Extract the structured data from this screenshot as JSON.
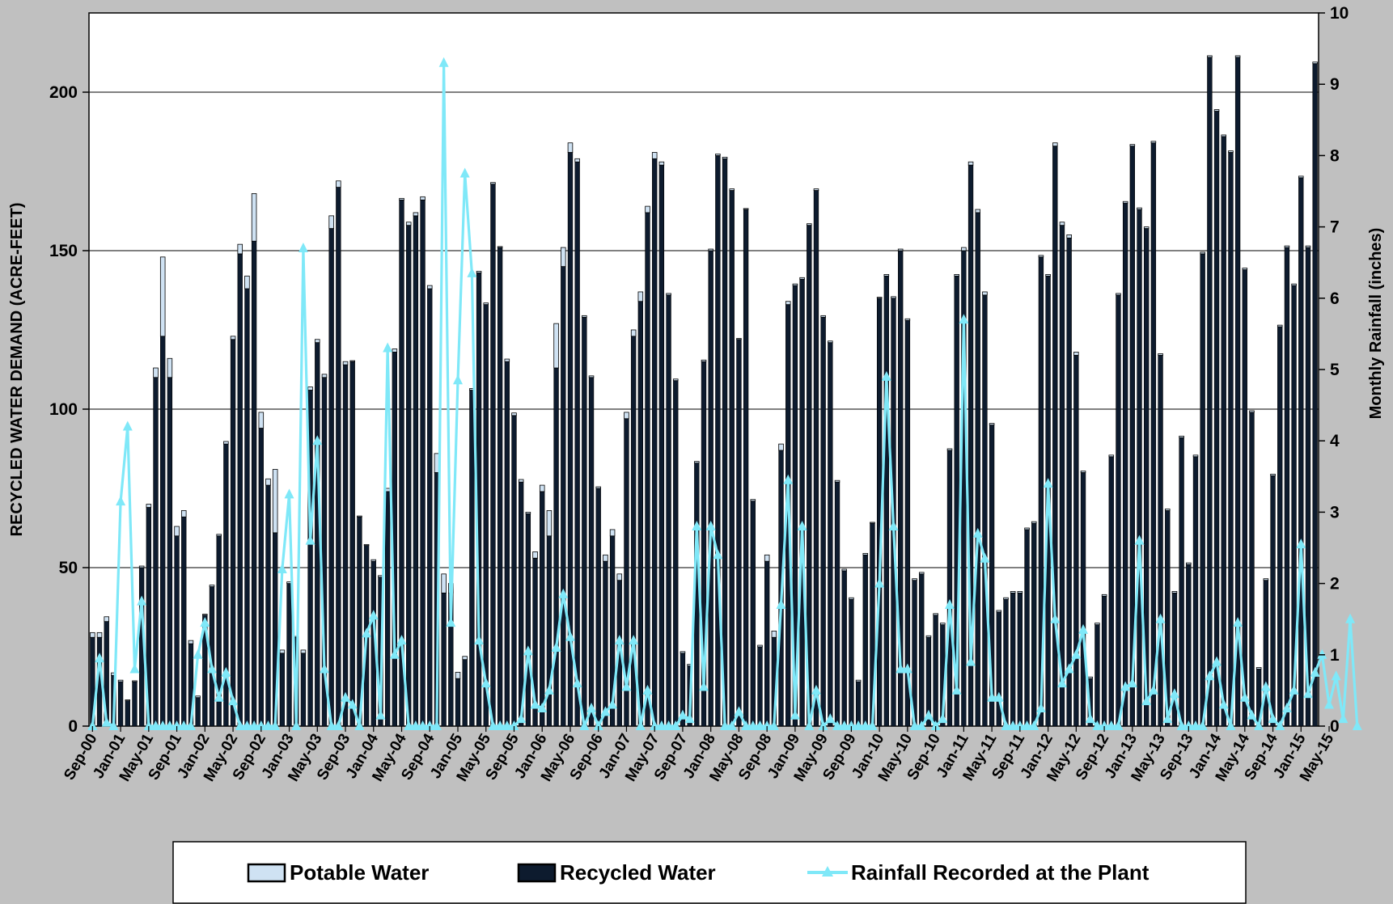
{
  "chart_data": {
    "type": "bar",
    "subtype": "bar-with-line-secondary-axis",
    "ylabel": "RECYCLED WATER DEMAND (ACRE-FEET)",
    "y2label": "Monthly Rainfall (inches)",
    "ylim": [
      0,
      225
    ],
    "y2lim": [
      0,
      10
    ],
    "yticks": [
      "0",
      "50",
      "100",
      "150",
      "200"
    ],
    "y2ticks": [
      "0",
      "1",
      "2",
      "3",
      "4",
      "5",
      "6",
      "7",
      "8",
      "9",
      "10"
    ],
    "xtick_labels": [
      "Sep-00",
      "Jan-01",
      "May-01",
      "Sep-01",
      "Jan-02",
      "May-02",
      "Sep-02",
      "Jan-03",
      "May-03",
      "Sep-03",
      "Jan-04",
      "May-04",
      "Sep-04",
      "Jan-05",
      "May-05",
      "Sep-05",
      "Jan-06",
      "May-06",
      "Sep-06",
      "Jan-07",
      "May-07",
      "Sep-07",
      "Jan-08",
      "May-08",
      "Sep-08",
      "Jan-09",
      "May-09",
      "Sep-09",
      "Jan-10",
      "May-10",
      "Sep-10",
      "Jan-11",
      "May-11",
      "Sep-11",
      "Jan-12",
      "May-12",
      "Sep-12",
      "Jan-13",
      "May-13",
      "Sep-13",
      "Jan-14",
      "May-14",
      "Sep-14",
      "Jan-15",
      "May-15"
    ],
    "grid": true,
    "legend_position": "bottom",
    "colors": {
      "background": "#c0c0c0",
      "plot_area": "#ffffff",
      "potable": "#cfe2f3",
      "recycled": "#0d1b2e",
      "rainfall": "#7fe8f8",
      "gridline": "#000000"
    },
    "series": [
      {
        "name": "Potable Water",
        "axis": "left",
        "values": [
          1.5,
          1.5,
          1.5,
          0.8,
          0.5,
          0.3,
          0.3,
          0.5,
          1,
          3,
          25,
          6,
          3,
          2,
          1,
          0.5,
          0.3,
          0.5,
          0.5,
          0.8,
          1,
          3,
          4,
          15,
          5,
          2,
          20,
          1,
          0.5,
          0.3,
          1,
          1,
          1,
          1,
          4,
          2,
          1,
          0.3,
          0.3,
          0.3,
          0.5,
          0.5,
          1,
          1,
          0.5,
          1,
          1,
          1,
          1,
          6,
          6,
          3,
          2,
          1,
          0.5,
          0.5,
          0.5,
          0.5,
          0.3,
          0.8,
          0.8,
          0.8,
          0.5,
          2,
          2,
          8,
          14,
          6,
          3,
          1,
          0.5,
          0.5,
          0.5,
          2,
          2,
          2,
          2,
          2,
          3,
          2,
          2,
          1,
          0.5,
          0.5,
          0.5,
          0.5,
          0.5,
          0.5,
          0.5,
          0.5,
          0.5,
          0.5,
          0.3,
          0.3,
          0.5,
          0.5,
          2,
          2,
          2,
          1,
          0.5,
          0.5,
          0.5,
          0.5,
          0.5,
          0.5,
          0.5,
          0.5,
          0.5,
          0.5,
          0.5,
          0.3,
          0.3,
          0.5,
          0.5,
          0.5,
          0.5,
          0.5,
          0.5,
          0.5,
          0.5,
          0.5,
          0.5,
          0.5,
          1,
          1,
          1,
          1,
          0.5,
          0.5,
          0.5,
          0.5,
          0.5,
          0.5,
          0.5,
          0.5,
          0.5,
          1,
          1,
          1,
          1,
          0.5,
          0.5,
          0.5,
          0.5,
          0.5,
          0.5,
          0.5,
          0.5,
          0.5,
          0.5,
          0.5,
          0.5,
          0.5,
          0.5,
          0.5,
          0.5,
          0.5,
          0.5,
          0.5,
          0.5,
          0.5,
          0.5,
          0.5,
          0.5,
          0.5,
          0.5,
          0.5,
          0.5,
          0.5,
          0.5,
          0.5,
          0.5,
          0.5,
          0.5,
          0.5,
          0.5,
          0.5,
          0.5
        ]
      },
      {
        "name": "Recycled Water",
        "axis": "left",
        "values": [
          28,
          28,
          33,
          16,
          14,
          8,
          14,
          50,
          69,
          110,
          123,
          110,
          60,
          66,
          26,
          9,
          35,
          44,
          60,
          89,
          122,
          149,
          138,
          153,
          94,
          76,
          61,
          23,
          45,
          28,
          23,
          106,
          121,
          110,
          157,
          170,
          114,
          115,
          66,
          57,
          52,
          47,
          74,
          118,
          166,
          158,
          161,
          166,
          138,
          80,
          42,
          42,
          15,
          21,
          106,
          143,
          133,
          171,
          151,
          115,
          98,
          77,
          67,
          53,
          74,
          60,
          113,
          145,
          181,
          178,
          129,
          110,
          75,
          52,
          60,
          46,
          97,
          123,
          134,
          162,
          179,
          177,
          136,
          109,
          23,
          19,
          83,
          115,
          150,
          180,
          179,
          169,
          122,
          163,
          71,
          25,
          52,
          28,
          87,
          133,
          139,
          141,
          158,
          169,
          129,
          121,
          77,
          49,
          40,
          14,
          54,
          64,
          135,
          142,
          135,
          150,
          128,
          46,
          48,
          28,
          35,
          32,
          87,
          142,
          150,
          177,
          162,
          136,
          95,
          36,
          40,
          42,
          42,
          62,
          64,
          148,
          142,
          183,
          158,
          154,
          117,
          80,
          15,
          32,
          41,
          85,
          136,
          165,
          183,
          163,
          157,
          184,
          117,
          68,
          42,
          91,
          51,
          85,
          149,
          211,
          194,
          186,
          181,
          211,
          144,
          99,
          18,
          46,
          79,
          126,
          151,
          139,
          173,
          151,
          209
        ]
      },
      {
        "name": "Rainfall Recorded at the Plant",
        "axis": "right",
        "type": "line",
        "values": [
          0,
          0.95,
          0.05,
          0,
          3.15,
          4.2,
          0.8,
          1.75,
          0,
          0,
          0,
          0,
          0,
          0,
          0,
          1,
          1.45,
          0.8,
          0.4,
          0.75,
          0.35,
          0,
          0,
          0,
          0,
          0,
          0,
          2.2,
          3.25,
          0,
          6.7,
          2.6,
          4.0,
          0.8,
          0,
          0,
          0.4,
          0.3,
          0,
          1.3,
          1.55,
          0.15,
          5.3,
          1.0,
          1.2,
          0,
          0,
          0,
          0,
          0,
          9.3,
          1.45,
          4.85,
          7.75,
          6.35,
          1.2,
          0.6,
          0,
          0,
          0,
          0,
          0.1,
          1.05,
          0.3,
          0.25,
          0.5,
          1.1,
          1.85,
          1.25,
          0.6,
          0,
          0.25,
          0,
          0.2,
          0.3,
          1.2,
          0.55,
          1.2,
          0,
          0.5,
          0,
          0,
          0,
          0,
          0.15,
          0.1,
          2.8,
          0.55,
          2.8,
          2.4,
          0,
          0,
          0.2,
          0,
          0,
          0,
          0,
          0,
          1.7,
          3.45,
          0.15,
          2.8,
          0,
          0.5,
          0,
          0.1,
          0,
          0,
          0,
          0,
          0,
          0,
          2.0,
          4.9,
          2.8,
          0.8,
          0.8,
          0,
          0,
          0.15,
          0,
          0.1,
          1.7,
          0.5,
          5.7,
          0.9,
          2.7,
          2.35,
          0.4,
          0.4,
          0,
          0,
          0,
          0,
          0,
          0.25,
          3.4,
          1.5,
          0.6,
          0.8,
          1.0,
          1.35,
          0.1,
          0,
          0,
          0,
          0,
          0.55,
          0.6,
          2.6,
          0.35,
          0.5,
          1.5,
          0.1,
          0.45,
          0,
          0,
          0,
          0,
          0.7,
          0.9,
          0.3,
          0,
          1.45,
          0.4,
          0.15,
          0,
          0.55,
          0.1,
          0,
          0.25,
          0.5,
          2.55,
          0.45,
          0.75,
          1.0,
          0.3,
          0.7,
          0.1,
          1.5,
          0
        ]
      }
    ]
  },
  "legend": {
    "items": [
      {
        "label": "Potable Water"
      },
      {
        "label": "Recycled Water"
      },
      {
        "label": "Rainfall Recorded at the Plant"
      }
    ]
  }
}
